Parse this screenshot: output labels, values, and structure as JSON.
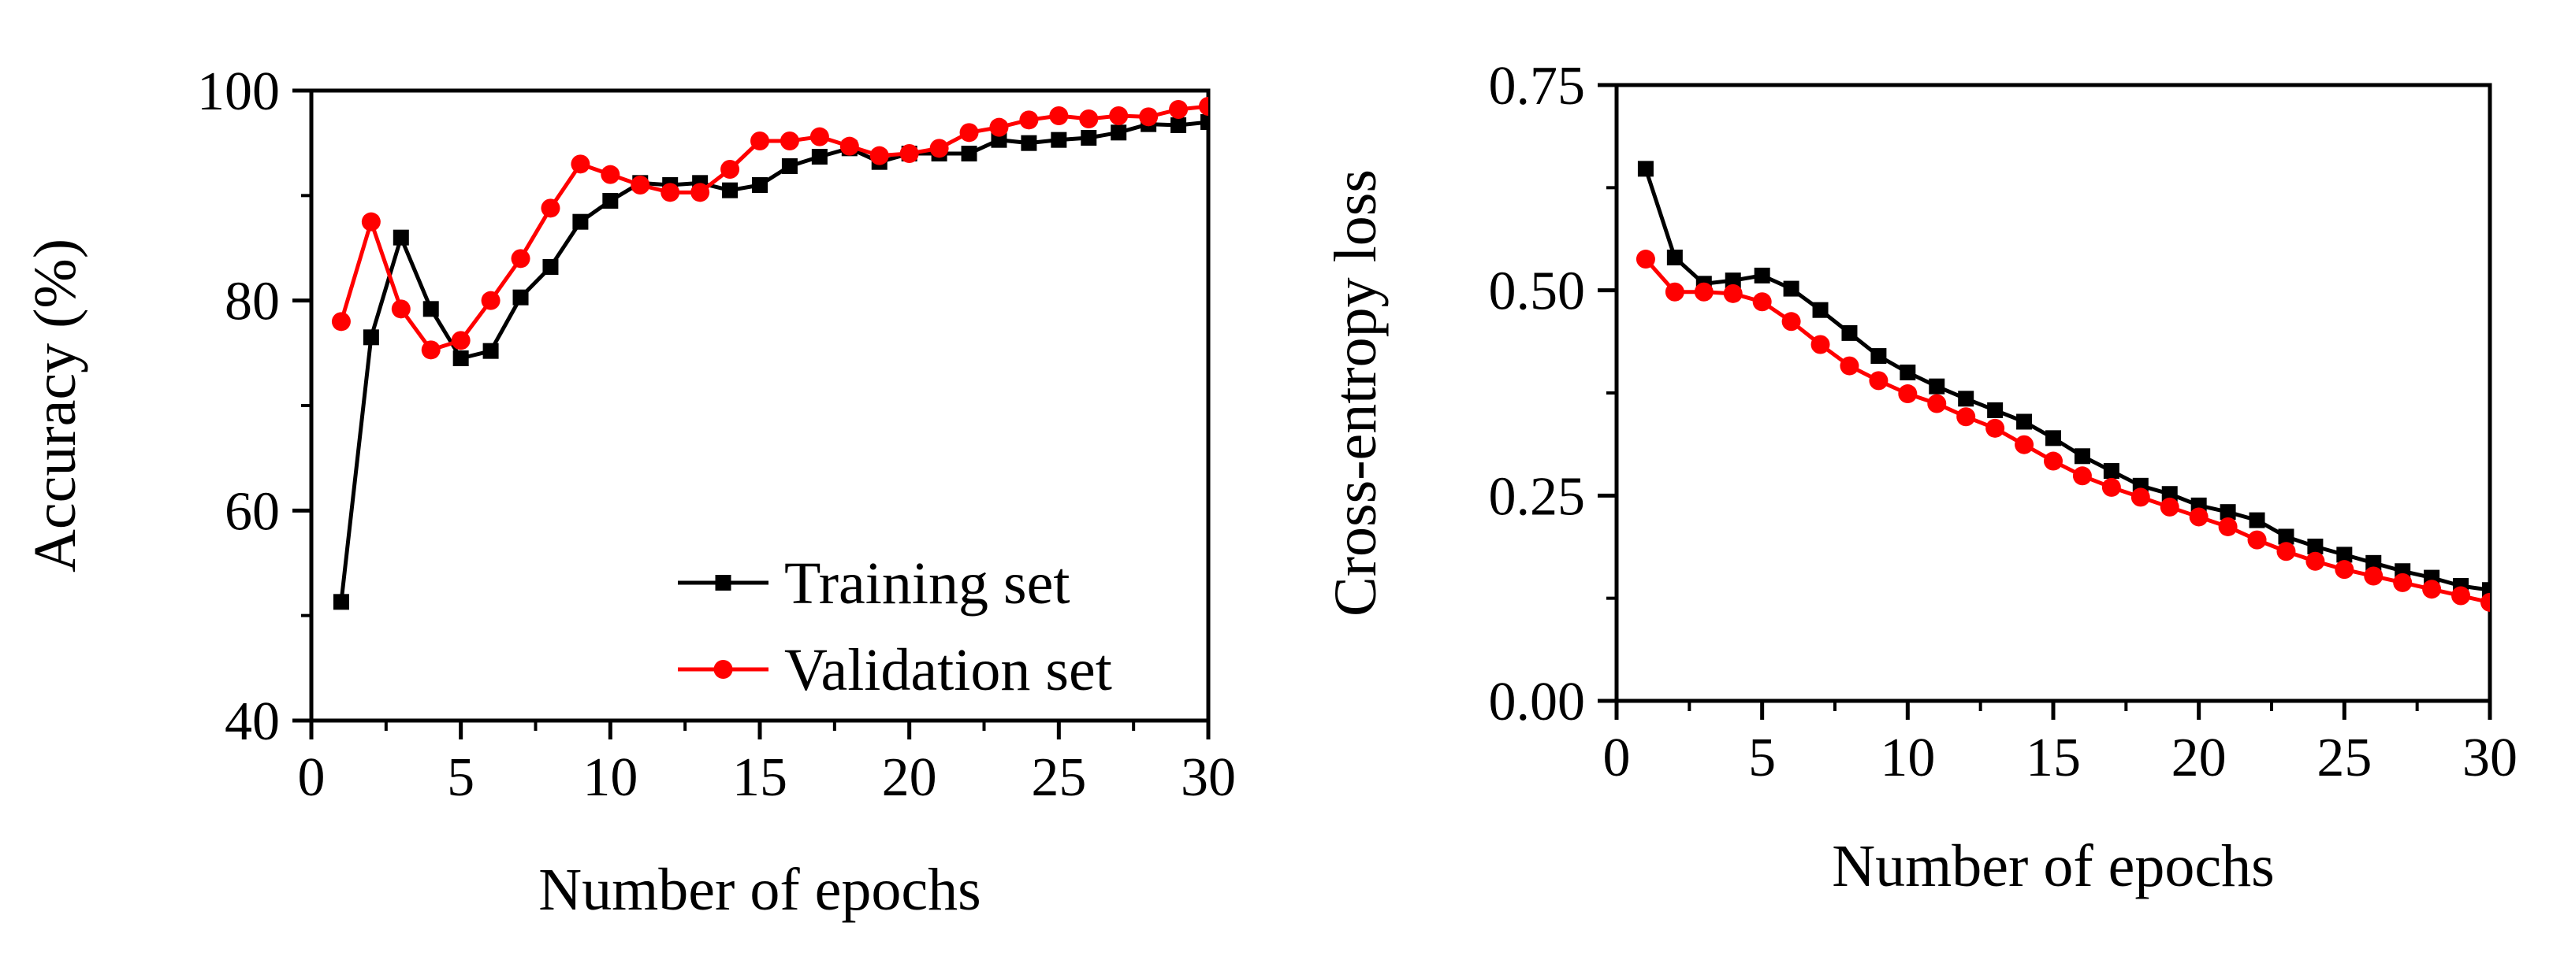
{
  "chart_data": [
    {
      "type": "line",
      "id": "accuracy",
      "xlabel": "Number of epochs",
      "ylabel": "Accuracy (%)",
      "xlim": [
        0,
        30
      ],
      "ylim": [
        40,
        100
      ],
      "xticks": [
        0,
        5,
        10,
        15,
        20,
        25,
        30
      ],
      "yticks": [
        40,
        60,
        80,
        100
      ],
      "x": [
        1,
        2,
        3,
        4,
        5,
        6,
        7,
        8,
        9,
        10,
        11,
        12,
        13,
        14,
        15,
        16,
        17,
        18,
        19,
        20,
        21,
        22,
        23,
        24,
        25,
        26,
        27,
        28,
        29,
        30
      ],
      "series": [
        {
          "name": "Training set",
          "color": "#000000",
          "marker": "square",
          "values": [
            51.3,
            76.5,
            86.0,
            79.2,
            74.5,
            75.2,
            80.3,
            83.2,
            87.5,
            89.5,
            91.2,
            91.0,
            91.2,
            90.5,
            91.0,
            92.8,
            93.7,
            94.5,
            93.2,
            94.0,
            94.0,
            94.0,
            95.3,
            95.0,
            95.3,
            95.5,
            96.0,
            96.8,
            96.7,
            97.0
          ]
        },
        {
          "name": "Validation set",
          "color": "#ff0000",
          "marker": "circle",
          "values": [
            78.0,
            87.5,
            79.2,
            75.3,
            76.2,
            80.0,
            84.0,
            88.8,
            93.0,
            92.0,
            91.0,
            90.3,
            90.3,
            92.5,
            95.2,
            95.2,
            95.6,
            94.7,
            93.8,
            94.0,
            94.5,
            96.0,
            96.5,
            97.2,
            97.6,
            97.3,
            97.6,
            97.5,
            98.2,
            98.5
          ]
        }
      ],
      "legend": "bottom-right"
    },
    {
      "type": "line",
      "id": "loss",
      "xlabel": "Number of epochs",
      "ylabel": "Cross-entropy loss",
      "xlim": [
        0,
        30
      ],
      "ylim": [
        0,
        0.75
      ],
      "xticks": [
        0,
        5,
        10,
        15,
        20,
        25,
        30
      ],
      "yticks": [
        0,
        0.25,
        0.5,
        0.75
      ],
      "ytick_labels": [
        "0.00",
        "0.25",
        "0.50",
        "0.75"
      ],
      "x": [
        1,
        2,
        3,
        4,
        5,
        6,
        7,
        8,
        9,
        10,
        11,
        12,
        13,
        14,
        15,
        16,
        17,
        18,
        19,
        20,
        21,
        22,
        23,
        24,
        25,
        26,
        27,
        28,
        29,
        30
      ],
      "series": [
        {
          "name": "Training set",
          "color": "#000000",
          "marker": "square",
          "values": [
            0.648,
            0.54,
            0.508,
            0.512,
            0.518,
            0.502,
            0.476,
            0.448,
            0.42,
            0.4,
            0.383,
            0.368,
            0.354,
            0.34,
            0.32,
            0.298,
            0.28,
            0.262,
            0.252,
            0.238,
            0.23,
            0.22,
            0.2,
            0.188,
            0.178,
            0.168,
            0.158,
            0.15,
            0.14,
            0.135
          ]
        },
        {
          "name": "Validation set",
          "color": "#ff0000",
          "marker": "circle",
          "values": [
            0.538,
            0.498,
            0.498,
            0.496,
            0.486,
            0.462,
            0.434,
            0.408,
            0.39,
            0.374,
            0.362,
            0.346,
            0.332,
            0.312,
            0.292,
            0.274,
            0.26,
            0.248,
            0.236,
            0.224,
            0.212,
            0.196,
            0.182,
            0.17,
            0.16,
            0.152,
            0.144,
            0.136,
            0.128,
            0.12
          ]
        }
      ]
    }
  ]
}
